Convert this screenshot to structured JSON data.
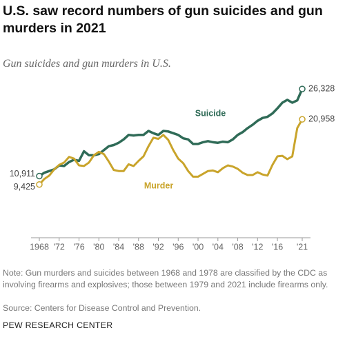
{
  "chart_data": {
    "type": "line",
    "title": "U.S. saw record numbers of gun suicides and gun murders in 2021",
    "subtitle": "Gun suicides and gun murders in U.S.",
    "note": "Note: Gun murders and suicides between 1968 and 1978 are classified by the CDC as involving firearms and explosives; those between 1979 and 2021 include firearms only.",
    "source": "Source: Centers for Disease Control and Prevention.",
    "credit": "PEW RESEARCH CENTER",
    "x": [
      1968,
      1969,
      1970,
      1971,
      1972,
      1973,
      1974,
      1975,
      1976,
      1977,
      1978,
      1979,
      1980,
      1981,
      1982,
      1983,
      1984,
      1985,
      1986,
      1987,
      1988,
      1989,
      1990,
      1991,
      1992,
      1993,
      1994,
      1995,
      1996,
      1997,
      1998,
      1999,
      2000,
      2001,
      2002,
      2003,
      2004,
      2005,
      2006,
      2007,
      2008,
      2009,
      2010,
      2011,
      2012,
      2013,
      2014,
      2015,
      2016,
      2017,
      2018,
      2019,
      2020,
      2021
    ],
    "xlim": [
      1968,
      2021
    ],
    "xticks": [
      1968,
      {
        "value": 1972,
        "label": "'72"
      },
      {
        "value": 1976,
        "label": "'76"
      },
      {
        "value": 1980,
        "label": "'80"
      },
      {
        "value": 1984,
        "label": "'84"
      },
      {
        "value": 1988,
        "label": "'88"
      },
      {
        "value": 1992,
        "label": "'92"
      },
      {
        "value": 1996,
        "label": "'96"
      },
      {
        "value": 2000,
        "label": "'00"
      },
      {
        "value": 2004,
        "label": "'04"
      },
      {
        "value": 2008,
        "label": "'08"
      },
      {
        "value": 2012,
        "label": "'12"
      },
      {
        "value": 2016,
        "label": "'16"
      },
      {
        "value": 2021,
        "label": "'21"
      }
    ],
    "ylim": [
      0,
      30000
    ],
    "series": [
      {
        "name": "Suicide",
        "color": "#2f6b57",
        "values": [
          10911,
          11500,
          11800,
          12100,
          12800,
          12700,
          13400,
          13800,
          13600,
          15300,
          14600,
          14600,
          14800,
          15500,
          16200,
          16400,
          16800,
          17400,
          18200,
          18100,
          18200,
          18200,
          18900,
          18500,
          18200,
          18900,
          18800,
          18500,
          18200,
          17600,
          17400,
          16600,
          16600,
          16900,
          17100,
          16900,
          16800,
          17000,
          16900,
          17400,
          18200,
          18700,
          19400,
          19990,
          20700,
          21200,
          21400,
          22000,
          22900,
          23900,
          24400,
          23900,
          24300,
          26328
        ],
        "value_labels": [
          "10,911",
          null,
          null,
          null,
          null,
          null,
          null,
          null,
          null,
          null,
          null,
          null,
          null,
          null,
          null,
          null,
          null,
          null,
          null,
          null,
          null,
          null,
          null,
          null,
          null,
          null,
          null,
          null,
          null,
          null,
          null,
          null,
          null,
          null,
          null,
          null,
          null,
          null,
          null,
          null,
          null,
          null,
          null,
          null,
          null,
          null,
          null,
          null,
          null,
          null,
          null,
          null,
          null,
          "26,328"
        ]
      },
      {
        "name": "Murder",
        "color": "#c9a42b",
        "values": [
          9425,
          10400,
          11000,
          12100,
          12900,
          13300,
          14300,
          14000,
          12800,
          12700,
          13300,
          14600,
          15200,
          14800,
          13500,
          12000,
          11800,
          11800,
          13000,
          12700,
          13600,
          14400,
          16200,
          17700,
          17500,
          18200,
          17300,
          15500,
          14000,
          13200,
          11800,
          10800,
          10800,
          11300,
          11800,
          11900,
          11600,
          12300,
          12800,
          12600,
          12200,
          11500,
          11100,
          11100,
          11600,
          11200,
          11000,
          12900,
          14400,
          14500,
          13900,
          14400,
          19400,
          20958
        ],
        "value_labels": [
          "9,425",
          null,
          null,
          null,
          null,
          null,
          null,
          null,
          null,
          null,
          null,
          null,
          null,
          null,
          null,
          null,
          null,
          null,
          null,
          null,
          null,
          null,
          null,
          null,
          null,
          null,
          null,
          null,
          null,
          null,
          null,
          null,
          null,
          null,
          null,
          null,
          null,
          null,
          null,
          null,
          null,
          null,
          null,
          null,
          null,
          null,
          null,
          null,
          null,
          null,
          null,
          null,
          null,
          "20,958"
        ]
      }
    ]
  }
}
